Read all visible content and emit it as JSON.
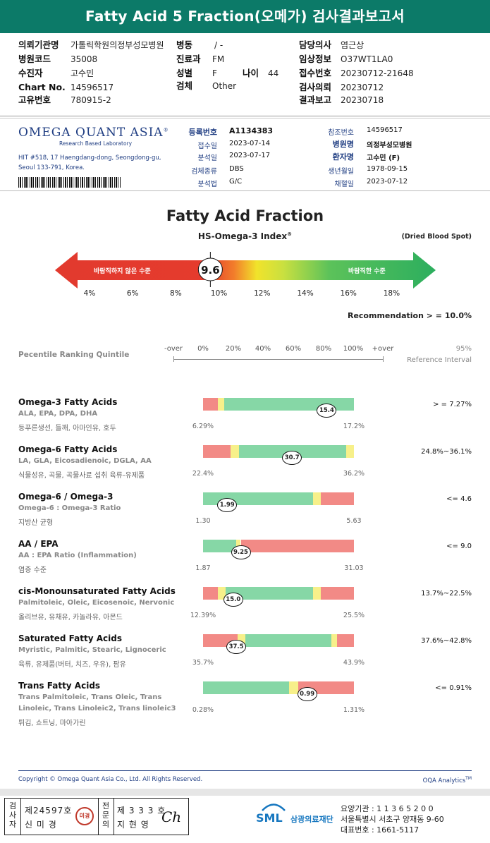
{
  "header": {
    "title": "Fatty Acid 5 Fraction(오메가) 검사결과보고서"
  },
  "patient": {
    "left": [
      {
        "label": "의뢰기관명",
        "value": "가톨릭학원의정부성모병원"
      },
      {
        "label": "병원코드",
        "value": "35008"
      },
      {
        "label": "수진자",
        "value": "고수민"
      },
      {
        "label": "Chart No.",
        "value": "14596517"
      },
      {
        "label": "고유번호",
        "value": "780915-2"
      }
    ],
    "middle": [
      {
        "label": "병동",
        "value": "/ -"
      },
      {
        "label": "진료과",
        "value": "FM"
      },
      {
        "label": "성별",
        "value": "F"
      },
      {
        "label": "검체",
        "value": "Other"
      }
    ],
    "age": {
      "label": "나이",
      "value": "44"
    },
    "right": [
      {
        "label": "담당의사",
        "value": "염근상"
      },
      {
        "label": "임상정보",
        "value": "O37WT1LA0"
      },
      {
        "label": "접수번호",
        "value": "20230712-21648"
      },
      {
        "label": "검사의뢰",
        "value": "20230712"
      },
      {
        "label": "결과보고",
        "value": "20230718"
      }
    ]
  },
  "lab": {
    "logo": "OMEGA QUANT ASIA",
    "logo_mark": "®",
    "subtitle": "Research Based Laboratory",
    "address_line1": "HIT #518, 17 Haengdang-dong, Seongdong-gu,",
    "address_line2": "Seoul 133-791, Korea."
  },
  "report": {
    "left": [
      {
        "label": "등록번호",
        "value": "A1134383",
        "bold": true
      },
      {
        "label": "접수일",
        "value": "2023-07-14",
        "bold": false
      },
      {
        "label": "분석일",
        "value": "2023-07-17",
        "bold": false
      },
      {
        "label": "검체종류",
        "value": "DBS",
        "bold": false
      },
      {
        "label": "분석법",
        "value": "G/C",
        "bold": false
      }
    ],
    "right": [
      {
        "label": "참조번호",
        "value": "14596517",
        "bold": false
      },
      {
        "label": "병원명",
        "value": "의정부성모병원",
        "bold": true
      },
      {
        "label": "환자명",
        "value": "고수민 (F)",
        "bold": true
      },
      {
        "label": "생년월일",
        "value": "1978-09-15",
        "bold": false
      },
      {
        "label": "채혈일",
        "value": "2023-07-12",
        "bold": false
      }
    ]
  },
  "index": {
    "title": "Fatty Acid Fraction",
    "subtitle": "HS-Omega-3 Index",
    "subtitle_mark": "®",
    "specimen_note": "(Dried Blood Spot)",
    "value": 9.6,
    "value_label": "9.6",
    "scale_min": 3,
    "scale_max": 19,
    "ticks": [
      "4%",
      "6%",
      "8%",
      "10%",
      "12%",
      "14%",
      "16%",
      "18%"
    ],
    "tick_values": [
      4,
      6,
      8,
      10,
      12,
      14,
      16,
      18
    ],
    "undesirable_label": "바람직하지 않은 수준",
    "desirable_label": "바람직한 수준",
    "recommendation": "Recommendation  > = 10.0%"
  },
  "percentile": {
    "heading": "Pecentile Ranking Quintile",
    "columns": [
      "-over",
      "0%",
      "20%",
      "40%",
      "60%",
      "80%",
      "100%",
      "+over"
    ],
    "ref_heading_1": "95%",
    "ref_heading_2": "Reference Interval"
  },
  "colors": {
    "red": "#f28a86",
    "green": "#86d7a6",
    "yellow": "#f7f08a",
    "teal": "#0c7a68",
    "navy": "#1f3d82"
  },
  "rows": [
    {
      "title": "Omega-3 Fatty Acids",
      "subs": [
        "ALA, EPA, DPA, DHA"
      ],
      "foods": "등푸른생선, 들깨, 아마인유, 호두",
      "ref": "> = 7.27%",
      "low": "6.29%",
      "high": "17.2%",
      "value": "15.4",
      "value_pct": 0.82,
      "segments": [
        [
          "red",
          0,
          0.1
        ],
        [
          "yellow",
          0.1,
          0.14
        ],
        [
          "green",
          0.14,
          1
        ]
      ]
    },
    {
      "title": "Omega-6 Fatty Acids",
      "subs": [
        "LA, GLA, Eicosadienoic, DGLA, AA"
      ],
      "foods": "식물성유, 곡물, 곡물사료 섭취 육류-유제품",
      "ref": "24.8%~36.1%",
      "low": "22.4%",
      "high": "36.2%",
      "value": "30.7",
      "value_pct": 0.59,
      "segments": [
        [
          "red",
          0,
          0.18
        ],
        [
          "yellow",
          0.18,
          0.24
        ],
        [
          "green",
          0.24,
          0.95
        ],
        [
          "yellow",
          0.95,
          1
        ]
      ]
    },
    {
      "title": "Omega-6 / Omega-3",
      "subs": [
        "Omega-6 : Omega-3 Ratio"
      ],
      "foods": "지방산 균형",
      "ref": "<= 4.6",
      "low": "1.30",
      "high": "5.63",
      "value": "1.99",
      "value_pct": 0.16,
      "segments": [
        [
          "green",
          0,
          0.73
        ],
        [
          "yellow",
          0.73,
          0.78
        ],
        [
          "red",
          0.78,
          1
        ]
      ]
    },
    {
      "title": "AA / EPA",
      "subs": [
        "AA : EPA Ratio (Inflammation)"
      ],
      "foods": "염증 수준",
      "ref": "<= 9.0",
      "low": "1.87",
      "high": "31.03",
      "value": "9.25",
      "value_pct": 0.25,
      "segments": [
        [
          "green",
          0,
          0.22
        ],
        [
          "yellow",
          0.22,
          0.25
        ],
        [
          "red",
          0.25,
          1
        ]
      ]
    },
    {
      "title": "cis-Monounsaturated Fatty Acids",
      "subs": [
        "Palmitoleic, Oleic, Eicosenoic, Nervonic"
      ],
      "foods": "올리브유, 유채유, 카놀라유, 아몬드",
      "ref": "13.7%~22.5%",
      "low": "12.39%",
      "high": "25.5%",
      "value": "15.0",
      "value_pct": 0.2,
      "segments": [
        [
          "red",
          0,
          0.1
        ],
        [
          "yellow",
          0.1,
          0.15
        ],
        [
          "green",
          0.15,
          0.73
        ],
        [
          "yellow",
          0.73,
          0.78
        ],
        [
          "red",
          0.78,
          1
        ]
      ]
    },
    {
      "title": "Saturated Fatty Acids",
      "subs": [
        "Myristic, Palmitic, Stearic, Lignoceric"
      ],
      "foods": "육류, 유제품(버터, 치즈, 우유), 팜유",
      "ref": "37.6%~42.8%",
      "low": "35.7%",
      "high": "43.9%",
      "value": "37.5",
      "value_pct": 0.22,
      "segments": [
        [
          "red",
          0,
          0.23
        ],
        [
          "yellow",
          0.23,
          0.28
        ],
        [
          "green",
          0.28,
          0.85
        ],
        [
          "yellow",
          0.85,
          0.89
        ],
        [
          "red",
          0.89,
          1
        ]
      ]
    },
    {
      "title": "Trans Fatty Acids",
      "subs": [
        "Trans Palmitoleic, Trans Oleic, Trans",
        "Linoleic, Trans Linoleic2, Trans linoleic3"
      ],
      "foods": "튀김, 쇼트닝, 마아가린",
      "ref": "<= 0.91%",
      "low": "0.28%",
      "high": "1.31%",
      "value": "0.99",
      "value_pct": 0.69,
      "segments": [
        [
          "green",
          0,
          0.57
        ],
        [
          "yellow",
          0.57,
          0.63
        ],
        [
          "red",
          0.63,
          1
        ]
      ]
    }
  ],
  "footer": {
    "copyright": "Copyright © Omega Quant Asia Co., Ltd.  All Rights Reserved.",
    "analytics": "OQA Analytics",
    "analytics_mark": "TM",
    "examiner_role": "검사자",
    "examiner_no": "제24597호",
    "examiner_name": "신 미 경",
    "examiner_seal": "미경",
    "supervisor_role": "전문의",
    "supervisor_no": "제 3 3 3 호",
    "supervisor_name": "지 현 영",
    "signature": "Ch",
    "sml_logo": "SML",
    "foundation": "삼광의료재단",
    "institution": "요양기관 : 1 1 3 6 5 2 0 0",
    "address": "서울특별시 서초구 양재동 9-60",
    "phone": "대표번호 : 1661-5117"
  }
}
